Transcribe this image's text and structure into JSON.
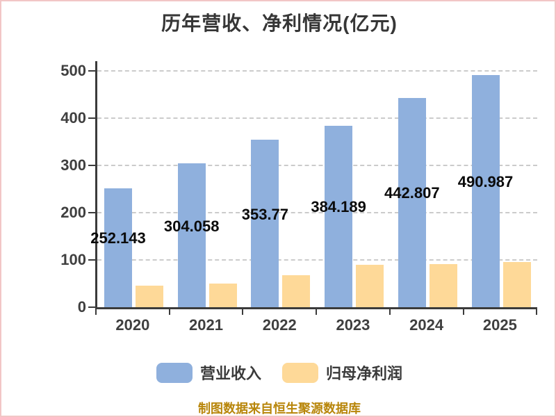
{
  "title": {
    "text": "历年营收、净利情况(亿元)"
  },
  "chart_data": {
    "type": "bar",
    "title": "历年营收、净利情况(亿元)",
    "categories": [
      "2020",
      "2021",
      "2022",
      "2023",
      "2024",
      "2025"
    ],
    "series": [
      {
        "name": "营业收入",
        "color": "#8fb0dd",
        "values": [
          252.143,
          304.058,
          353.77,
          384.189,
          442.807,
          490.987
        ],
        "value_labels": [
          "252.143",
          "304.058",
          "353.77",
          "384.189",
          "442.807",
          "490.987"
        ],
        "labels_shown": true
      },
      {
        "name": "归母净利润",
        "color": "#fed998",
        "values": [
          45,
          50,
          68,
          90,
          91,
          95
        ],
        "labels_shown": false
      }
    ],
    "ylim": [
      0,
      500
    ],
    "yticks": [
      0,
      100,
      200,
      300,
      400,
      500
    ],
    "grid": "horizontal-dashed",
    "grid_color": "#cbcbcb",
    "axis_color": "#3b3b3b",
    "tick_label_color": "#3f3f3f",
    "value_label_color": "#0b0b0b",
    "legend_position": "bottom"
  },
  "legend": {
    "items": [
      {
        "label": "营业收入",
        "color": "#8fb0dd"
      },
      {
        "label": "归母净利润",
        "color": "#fed998"
      }
    ]
  },
  "footer": {
    "text": "制图数据来自恒生聚源数据库",
    "color": "#b8860b"
  },
  "frame": {
    "border_color": "#f2c6c6",
    "background": "#ffffff"
  }
}
